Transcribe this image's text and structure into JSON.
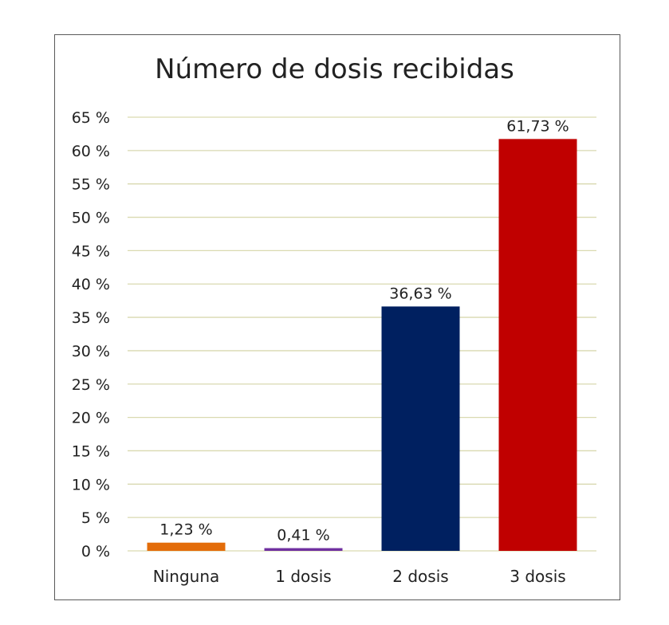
{
  "chart_data": {
    "type": "bar",
    "title": "Número de dosis recibidas",
    "categories": [
      "Ninguna",
      "1 dosis",
      "2 dosis",
      "3 dosis"
    ],
    "values": [
      1.23,
      0.41,
      36.63,
      61.73
    ],
    "value_labels": [
      "1,23 %",
      "0,41 %",
      "36,63 %",
      "61,73 %"
    ],
    "colors": [
      "#E36C0A",
      "#7030A0",
      "#002060",
      "#C00000"
    ],
    "ylim": [
      0,
      65
    ],
    "yticks": [
      0,
      5,
      10,
      15,
      20,
      25,
      30,
      35,
      40,
      45,
      50,
      55,
      60,
      65
    ],
    "ytick_labels": [
      "0 %",
      "5 %",
      "10 %",
      "15 %",
      "20 %",
      "25 %",
      "30 %",
      "35 %",
      "40 %",
      "45 %",
      "50 %",
      "55 %",
      "60 %",
      "65 %"
    ],
    "grid": true,
    "gridline_color": "#D9D9B0",
    "legend": "none"
  }
}
